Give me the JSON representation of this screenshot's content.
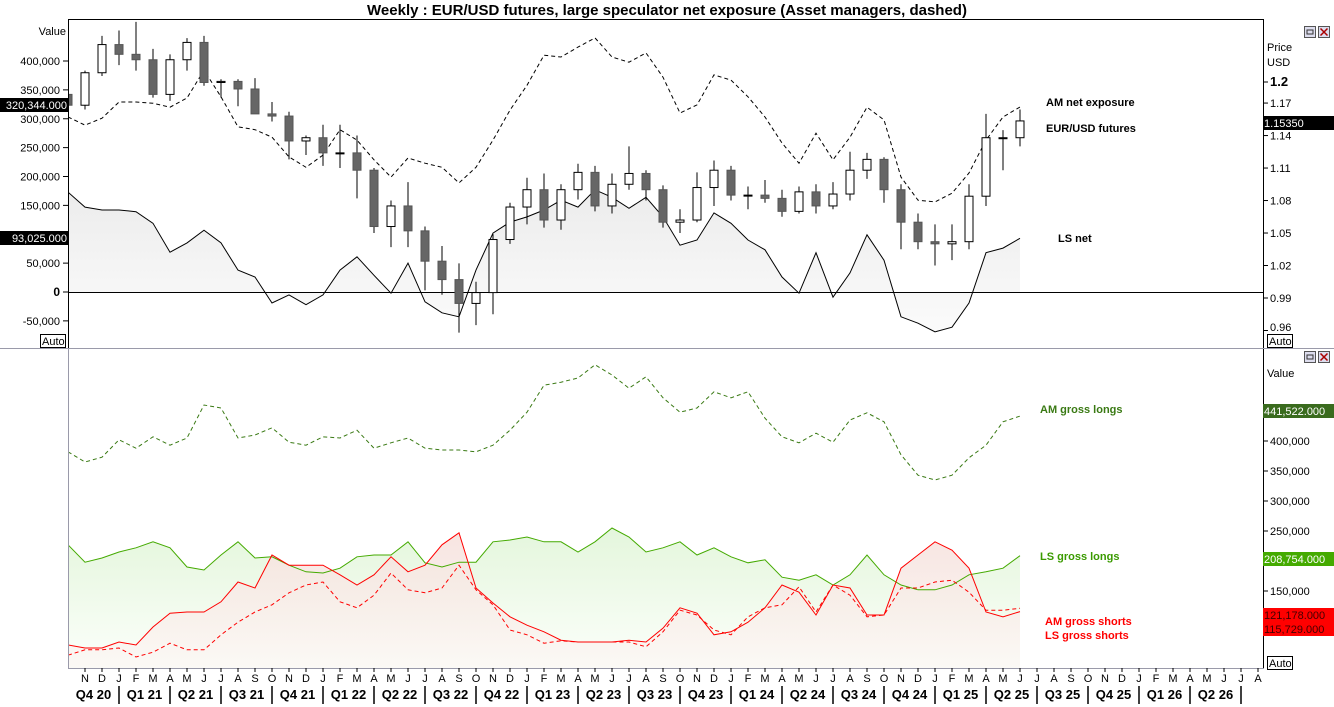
{
  "title": "Weekly : EUR/USD futures, large speculator net exposure (Asset managers, dashed)",
  "top_pane": {
    "left_axis_title": "Value",
    "left_ticks": [
      "400,000",
      "350,000",
      "300,000",
      "250,000",
      "200,000",
      "150,000",
      "50,000",
      "0",
      "-50,000"
    ],
    "right_axis_title": [
      "Price",
      "USD"
    ],
    "right_ticks": [
      "1.2",
      "1.17",
      "1.14",
      "1.11",
      "1.08",
      "1.05",
      "1.02",
      "0.99",
      "0.96"
    ],
    "auto_left": "Auto",
    "auto_right": "Auto",
    "tags": {
      "am_net": "320,344.000",
      "ls_net": "93,025.000",
      "price": "1.15350"
    },
    "labels": {
      "am_net": "AM net exposure",
      "price": "EUR/USD futures",
      "ls_net": "LS net"
    }
  },
  "bottom_pane": {
    "right_axis_title": "Value",
    "right_ticks": [
      "400,000",
      "350,000",
      "300,000",
      "250,000",
      "150,000"
    ],
    "auto_right": "Auto",
    "tags": {
      "am_longs": "441,522.000",
      "ls_longs": "208,754.000",
      "am_shorts": "121,178.000",
      "ls_shorts": "115,729.000"
    },
    "labels": {
      "am_longs": "AM gross longs",
      "ls_longs": "LS gross longs",
      "am_shorts": "AM gross shorts",
      "ls_shorts": "LS gross shorts"
    }
  },
  "time_axis": {
    "months": [
      "N",
      "D",
      "J",
      "F",
      "M",
      "A",
      "M",
      "J",
      "J",
      "A",
      "S",
      "O",
      "N",
      "D",
      "J",
      "F",
      "M",
      "A",
      "M",
      "J",
      "J",
      "A",
      "S",
      "O",
      "N",
      "D",
      "J",
      "F",
      "M",
      "A",
      "M",
      "J",
      "J",
      "A",
      "S",
      "O",
      "N",
      "D",
      "J",
      "F",
      "M",
      "A",
      "M",
      "J",
      "J",
      "A",
      "S",
      "O",
      "N",
      "D",
      "J",
      "F",
      "M",
      "A",
      "M",
      "J",
      "J",
      "A",
      "S",
      "O",
      "N",
      "D",
      "J",
      "F",
      "M",
      "A",
      "M",
      "J",
      "J",
      "A"
    ],
    "quarters": [
      "Q4 20",
      "Q1 21",
      "Q2 21",
      "Q3 21",
      "Q4 21",
      "Q1 22",
      "Q2 22",
      "Q3 22",
      "Q4 22",
      "Q1 23",
      "Q2 23",
      "Q3 23",
      "Q4 23",
      "Q1 24",
      "Q2 24",
      "Q3 24",
      "Q4 24",
      "Q1 25",
      "Q2 25",
      "Q3 25",
      "Q4 25",
      "Q1 26",
      "Q2 26"
    ]
  },
  "colors": {
    "am_longs": "#3a7a14",
    "ls_longs": "#44aa00",
    "shorts": "#ff0000",
    "candle_down": "#666666",
    "tag_dark": "#000000"
  },
  "chart_data": [
    {
      "type": "line",
      "pane": "top",
      "left_ylim": [
        -75000,
        450000
      ],
      "right_ylim": [
        0.95,
        1.25
      ],
      "dates": [
        "2020-10",
        "2020-11",
        "2020-12",
        "2021-01",
        "2021-02",
        "2021-03",
        "2021-04",
        "2021-05",
        "2021-06",
        "2021-07",
        "2021-08",
        "2021-09",
        "2021-10",
        "2021-11",
        "2021-12",
        "2022-01",
        "2022-02",
        "2022-03",
        "2022-04",
        "2022-05",
        "2022-06",
        "2022-07",
        "2022-08",
        "2022-09",
        "2022-10",
        "2022-11",
        "2022-12",
        "2023-01",
        "2023-02",
        "2023-03",
        "2023-04",
        "2023-05",
        "2023-06",
        "2023-07",
        "2023-08",
        "2023-09",
        "2023-10",
        "2023-11",
        "2023-12",
        "2024-01",
        "2024-02",
        "2024-03",
        "2024-04",
        "2024-05",
        "2024-06",
        "2024-07",
        "2024-08",
        "2024-09",
        "2024-10",
        "2024-11",
        "2024-12",
        "2025-01",
        "2025-02",
        "2025-03",
        "2025-04",
        "2025-05",
        "2025-06"
      ],
      "series": [
        {
          "name": "AM net exposure",
          "style": "dashed",
          "axis": "left",
          "values": [
            303000,
            289000,
            301000,
            329000,
            329000,
            327000,
            320000,
            336000,
            384000,
            338000,
            286000,
            281000,
            268000,
            234000,
            216000,
            237000,
            281000,
            263000,
            229000,
            199000,
            232000,
            223000,
            216000,
            189000,
            216000,
            263000,
            315000,
            358000,
            410000,
            407000,
            424000,
            440000,
            407000,
            398000,
            414000,
            372000,
            310000,
            324000,
            376000,
            367000,
            338000,
            303000,
            258000,
            223000,
            275000,
            229000,
            268000,
            320000,
            298000,
            199000,
            159000,
            156000,
            171000,
            206000,
            263000,
            303000,
            320344
          ]
        },
        {
          "name": "LS net",
          "style": "solid-area",
          "axis": "left",
          "values": [
            173000,
            147000,
            142000,
            142000,
            139000,
            119000,
            69000,
            85000,
            107000,
            85000,
            38000,
            26000,
            -19000,
            -5000,
            -22000,
            -5000,
            38000,
            61000,
            29000,
            -2000,
            50000,
            -17000,
            -36000,
            -43000,
            38000,
            102000,
            121000,
            130000,
            142000,
            159000,
            147000,
            177000,
            164000,
            145000,
            164000,
            130000,
            81000,
            90000,
            137000,
            119000,
            90000,
            73000,
            26000,
            -2000,
            68000,
            -9000,
            33000,
            99000,
            55000,
            -43000,
            -54000,
            -69000,
            -61000,
            -19000,
            68000,
            76000,
            93025
          ]
        },
        {
          "name": "EUR/USD futures",
          "style": "candlestick",
          "axis": "right",
          "ohlc": [
            [
              1.178,
              1.188,
              1.165,
              1.168
            ],
            [
              1.168,
              1.2,
              1.164,
              1.198
            ],
            [
              1.198,
              1.232,
              1.195,
              1.224
            ],
            [
              1.224,
              1.237,
              1.205,
              1.215
            ],
            [
              1.215,
              1.245,
              1.2,
              1.21
            ],
            [
              1.21,
              1.22,
              1.175,
              1.178
            ],
            [
              1.178,
              1.215,
              1.172,
              1.21
            ],
            [
              1.21,
              1.23,
              1.2,
              1.226
            ],
            [
              1.226,
              1.232,
              1.186,
              1.189
            ],
            [
              1.189,
              1.192,
              1.175,
              1.19
            ],
            [
              1.19,
              1.192,
              1.167,
              1.183
            ],
            [
              1.183,
              1.193,
              1.16,
              1.16
            ],
            [
              1.16,
              1.171,
              1.153,
              1.158
            ],
            [
              1.158,
              1.162,
              1.118,
              1.135
            ],
            [
              1.135,
              1.14,
              1.122,
              1.138
            ],
            [
              1.138,
              1.15,
              1.112,
              1.124
            ],
            [
              1.124,
              1.15,
              1.11,
              1.124
            ],
            [
              1.124,
              1.14,
              1.082,
              1.108
            ],
            [
              1.108,
              1.11,
              1.05,
              1.056
            ],
            [
              1.056,
              1.08,
              1.037,
              1.075
            ],
            [
              1.075,
              1.097,
              1.037,
              1.052
            ],
            [
              1.052,
              1.056,
              0.997,
              1.024
            ],
            [
              1.024,
              1.038,
              0.993,
              1.007
            ],
            [
              1.007,
              1.022,
              0.958,
              0.985
            ],
            [
              0.985,
              1.005,
              0.965,
              0.995
            ],
            [
              0.995,
              1.049,
              0.975,
              1.044
            ],
            [
              1.044,
              1.078,
              1.04,
              1.074
            ],
            [
              1.074,
              1.101,
              1.058,
              1.09
            ],
            [
              1.09,
              1.105,
              1.055,
              1.062
            ],
            [
              1.062,
              1.095,
              1.053,
              1.09
            ],
            [
              1.09,
              1.114,
              1.081,
              1.106
            ],
            [
              1.106,
              1.112,
              1.07,
              1.075
            ],
            [
              1.075,
              1.105,
              1.068,
              1.095
            ],
            [
              1.095,
              1.13,
              1.09,
              1.105
            ],
            [
              1.105,
              1.108,
              1.08,
              1.09
            ],
            [
              1.09,
              1.094,
              1.055,
              1.06
            ],
            [
              1.06,
              1.072,
              1.05,
              1.062
            ],
            [
              1.062,
              1.106,
              1.06,
              1.092
            ],
            [
              1.092,
              1.117,
              1.075,
              1.108
            ],
            [
              1.108,
              1.112,
              1.08,
              1.085
            ],
            [
              1.085,
              1.093,
              1.072,
              1.085
            ],
            [
              1.085,
              1.099,
              1.078,
              1.082
            ],
            [
              1.082,
              1.09,
              1.065,
              1.07
            ],
            [
              1.07,
              1.093,
              1.068,
              1.088
            ],
            [
              1.088,
              1.095,
              1.068,
              1.075
            ],
            [
              1.075,
              1.097,
              1.072,
              1.086
            ],
            [
              1.086,
              1.125,
              1.08,
              1.108
            ],
            [
              1.108,
              1.124,
              1.1,
              1.118
            ],
            [
              1.118,
              1.12,
              1.078,
              1.09
            ],
            [
              1.09,
              1.095,
              1.035,
              1.06
            ],
            [
              1.06,
              1.068,
              1.035,
              1.042
            ],
            [
              1.042,
              1.058,
              1.02,
              1.04
            ],
            [
              1.04,
              1.058,
              1.025,
              1.042
            ],
            [
              1.042,
              1.095,
              1.035,
              1.084
            ],
            [
              1.084,
              1.16,
              1.075,
              1.138
            ],
            [
              1.138,
              1.145,
              1.108,
              1.138
            ],
            [
              1.138,
              1.164,
              1.13,
              1.1535
            ]
          ]
        }
      ]
    },
    {
      "type": "line",
      "pane": "bottom",
      "ylim": [
        0,
        520000
      ],
      "dates": "same as top pane",
      "series": [
        {
          "name": "AM gross longs",
          "style": "dashed",
          "color": "#3a7a14",
          "values": [
            382000,
            365000,
            373000,
            402000,
            388000,
            407000,
            393000,
            405000,
            460000,
            455000,
            405000,
            410000,
            422000,
            398000,
            393000,
            407000,
            405000,
            418000,
            388000,
            397000,
            405000,
            388000,
            385000,
            385000,
            382000,
            393000,
            418000,
            448000,
            493000,
            498000,
            505000,
            527000,
            510000,
            488000,
            507000,
            472000,
            448000,
            455000,
            482000,
            472000,
            482000,
            438000,
            407000,
            397000,
            413000,
            398000,
            435000,
            447000,
            432000,
            377000,
            343000,
            335000,
            343000,
            372000,
            393000,
            432000,
            441522
          ]
        },
        {
          "name": "LS gross longs",
          "style": "solid-area",
          "color": "#44aa00",
          "values": [
            227000,
            198000,
            205000,
            215000,
            222000,
            232000,
            222000,
            190000,
            185000,
            210000,
            232000,
            205000,
            207000,
            193000,
            182000,
            180000,
            188000,
            207000,
            210000,
            210000,
            232000,
            197000,
            190000,
            198000,
            198000,
            232000,
            235000,
            240000,
            232000,
            232000,
            215000,
            232000,
            255000,
            240000,
            215000,
            222000,
            232000,
            210000,
            222000,
            207000,
            197000,
            202000,
            173000,
            168000,
            177000,
            160000,
            177000,
            210000,
            177000,
            160000,
            152000,
            152000,
            160000,
            177000,
            182000,
            188000,
            208754
          ]
        },
        {
          "name": "AM gross shorts",
          "style": "dashed",
          "color": "#ff0000",
          "values": [
            43000,
            52000,
            52000,
            55000,
            40000,
            48000,
            63000,
            52000,
            52000,
            77000,
            98000,
            115000,
            127000,
            147000,
            160000,
            165000,
            132000,
            122000,
            143000,
            180000,
            152000,
            147000,
            155000,
            193000,
            152000,
            127000,
            85000,
            77000,
            63000,
            67000,
            65000,
            65000,
            65000,
            65000,
            57000,
            82000,
            118000,
            110000,
            85000,
            77000,
            107000,
            122000,
            127000,
            157000,
            115000,
            160000,
            143000,
            107000,
            110000,
            155000,
            155000,
            165000,
            168000,
            148000,
            118000,
            118000,
            121178
          ]
        },
        {
          "name": "LS gross shorts",
          "style": "solid-area",
          "color": "#ff0000",
          "values": [
            60000,
            55000,
            55000,
            65000,
            60000,
            90000,
            113000,
            115000,
            115000,
            132000,
            165000,
            155000,
            210000,
            193000,
            193000,
            193000,
            177000,
            160000,
            177000,
            207000,
            182000,
            193000,
            227000,
            247000,
            155000,
            130000,
            107000,
            93000,
            82000,
            68000,
            65000,
            65000,
            65000,
            68000,
            65000,
            88000,
            122000,
            113000,
            77000,
            82000,
            98000,
            122000,
            160000,
            148000,
            110000,
            160000,
            155000,
            110000,
            110000,
            188000,
            210000,
            232000,
            218000,
            188000,
            115000,
            107000,
            115729
          ]
        }
      ]
    }
  ]
}
